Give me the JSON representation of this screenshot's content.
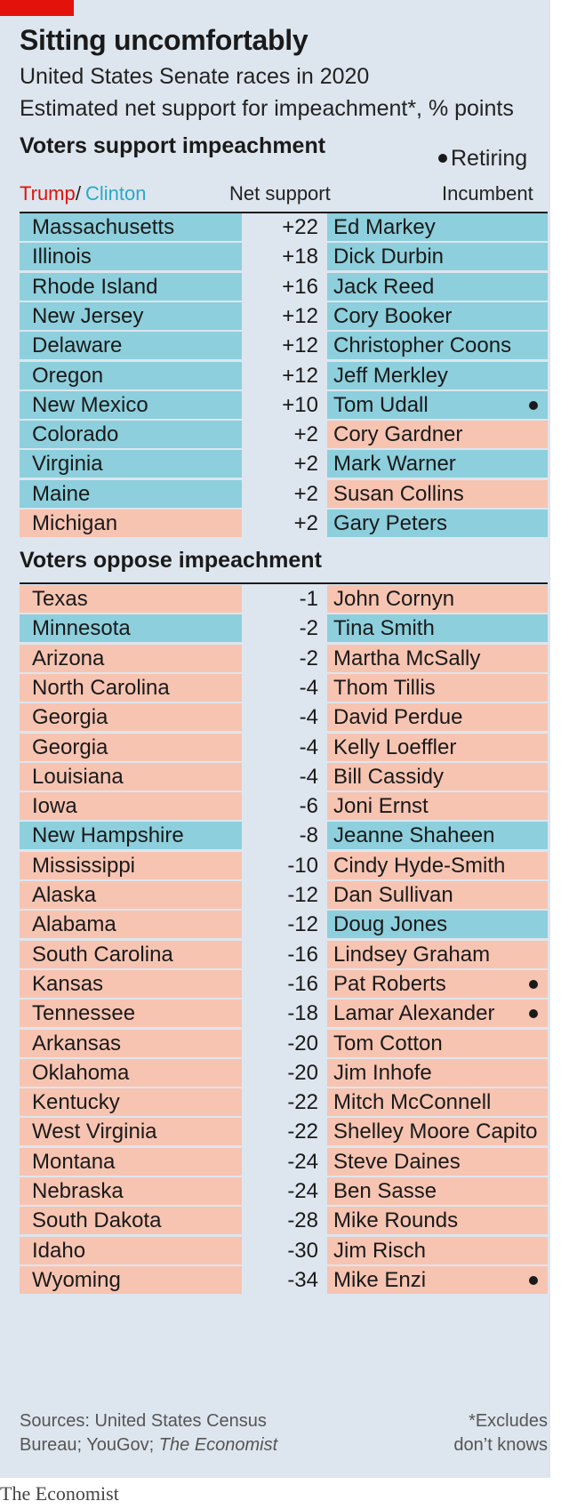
{
  "header": {
    "title": "Sitting uncomfortably",
    "subtitle_line1": "United States Senate races in 2020",
    "subtitle_line2": "Estimated net support for impeachment*, % points"
  },
  "legend": {
    "retiring": "Retiring",
    "trump": "Trump",
    "slash": "/",
    "clinton": "Clinton",
    "net_support": "Net support",
    "incumbent": "Incumbent"
  },
  "colors": {
    "trump": "#f7c4b2",
    "clinton": "#8dcfdc",
    "brand_red": "#e3120b"
  },
  "chart_data": {
    "type": "table",
    "columns": [
      "State (Trump/Clinton)",
      "Net support",
      "Incumbent"
    ],
    "sections": [
      {
        "heading": "Voters support impeachment",
        "rows": [
          {
            "state": "Massachusetts",
            "state_win": "clinton",
            "net": "+22",
            "value": 22,
            "incumbent": "Ed Markey",
            "party": "clinton",
            "retiring": false
          },
          {
            "state": "Illinois",
            "state_win": "clinton",
            "net": "+18",
            "value": 18,
            "incumbent": "Dick Durbin",
            "party": "clinton",
            "retiring": false
          },
          {
            "state": "Rhode Island",
            "state_win": "clinton",
            "net": "+16",
            "value": 16,
            "incumbent": "Jack Reed",
            "party": "clinton",
            "retiring": false
          },
          {
            "state": "New Jersey",
            "state_win": "clinton",
            "net": "+12",
            "value": 12,
            "incumbent": "Cory Booker",
            "party": "clinton",
            "retiring": false
          },
          {
            "state": "Delaware",
            "state_win": "clinton",
            "net": "+12",
            "value": 12,
            "incumbent": "Christopher Coons",
            "party": "clinton",
            "retiring": false
          },
          {
            "state": "Oregon",
            "state_win": "clinton",
            "net": "+12",
            "value": 12,
            "incumbent": "Jeff Merkley",
            "party": "clinton",
            "retiring": false
          },
          {
            "state": "New Mexico",
            "state_win": "clinton",
            "net": "+10",
            "value": 10,
            "incumbent": "Tom Udall",
            "party": "clinton",
            "retiring": true
          },
          {
            "state": "Colorado",
            "state_win": "clinton",
            "net": "+2",
            "value": 2,
            "incumbent": "Cory Gardner",
            "party": "trump",
            "retiring": false
          },
          {
            "state": "Virginia",
            "state_win": "clinton",
            "net": "+2",
            "value": 2,
            "incumbent": "Mark Warner",
            "party": "clinton",
            "retiring": false
          },
          {
            "state": "Maine",
            "state_win": "clinton",
            "net": "+2",
            "value": 2,
            "incumbent": "Susan Collins",
            "party": "trump",
            "retiring": false
          },
          {
            "state": "Michigan",
            "state_win": "trump",
            "net": "+2",
            "value": 2,
            "incumbent": "Gary Peters",
            "party": "clinton",
            "retiring": false
          }
        ]
      },
      {
        "heading": "Voters oppose impeachment",
        "rows": [
          {
            "state": "Texas",
            "state_win": "trump",
            "net": "-1",
            "value": -1,
            "incumbent": "John Cornyn",
            "party": "trump",
            "retiring": false
          },
          {
            "state": "Minnesota",
            "state_win": "clinton",
            "net": "-2",
            "value": -2,
            "incumbent": "Tina Smith",
            "party": "clinton",
            "retiring": false
          },
          {
            "state": "Arizona",
            "state_win": "trump",
            "net": "-2",
            "value": -2,
            "incumbent": "Martha McSally",
            "party": "trump",
            "retiring": false
          },
          {
            "state": "North Carolina",
            "state_win": "trump",
            "net": "-4",
            "value": -4,
            "incumbent": "Thom Tillis",
            "party": "trump",
            "retiring": false
          },
          {
            "state": "Georgia",
            "state_win": "trump",
            "net": "-4",
            "value": -4,
            "incumbent": "David Perdue",
            "party": "trump",
            "retiring": false
          },
          {
            "state": "Georgia",
            "state_win": "trump",
            "net": "-4",
            "value": -4,
            "incumbent": "Kelly Loeffler",
            "party": "trump",
            "retiring": false
          },
          {
            "state": "Louisiana",
            "state_win": "trump",
            "net": "-4",
            "value": -4,
            "incumbent": "Bill Cassidy",
            "party": "trump",
            "retiring": false
          },
          {
            "state": "Iowa",
            "state_win": "trump",
            "net": "-6",
            "value": -6,
            "incumbent": "Joni Ernst",
            "party": "trump",
            "retiring": false
          },
          {
            "state": "New Hampshire",
            "state_win": "clinton",
            "net": "-8",
            "value": -8,
            "incumbent": "Jeanne Shaheen",
            "party": "clinton",
            "retiring": false
          },
          {
            "state": "Mississippi",
            "state_win": "trump",
            "net": "-10",
            "value": -10,
            "incumbent": "Cindy Hyde-Smith",
            "party": "trump",
            "retiring": false
          },
          {
            "state": "Alaska",
            "state_win": "trump",
            "net": "-12",
            "value": -12,
            "incumbent": "Dan Sullivan",
            "party": "trump",
            "retiring": false
          },
          {
            "state": "Alabama",
            "state_win": "trump",
            "net": "-12",
            "value": -12,
            "incumbent": "Doug Jones",
            "party": "clinton",
            "retiring": false
          },
          {
            "state": "South Carolina",
            "state_win": "trump",
            "net": "-16",
            "value": -16,
            "incumbent": "Lindsey Graham",
            "party": "trump",
            "retiring": false
          },
          {
            "state": "Kansas",
            "state_win": "trump",
            "net": "-16",
            "value": -16,
            "incumbent": "Pat Roberts",
            "party": "trump",
            "retiring": true
          },
          {
            "state": "Tennessee",
            "state_win": "trump",
            "net": "-18",
            "value": -18,
            "incumbent": "Lamar Alexander",
            "party": "trump",
            "retiring": true
          },
          {
            "state": "Arkansas",
            "state_win": "trump",
            "net": "-20",
            "value": -20,
            "incumbent": "Tom Cotton",
            "party": "trump",
            "retiring": false
          },
          {
            "state": "Oklahoma",
            "state_win": "trump",
            "net": "-20",
            "value": -20,
            "incumbent": "Jim Inhofe",
            "party": "trump",
            "retiring": false
          },
          {
            "state": "Kentucky",
            "state_win": "trump",
            "net": "-22",
            "value": -22,
            "incumbent": "Mitch McConnell",
            "party": "trump",
            "retiring": false
          },
          {
            "state": "West Virginia",
            "state_win": "trump",
            "net": "-22",
            "value": -22,
            "incumbent": "Shelley Moore Capito",
            "party": "trump",
            "retiring": false
          },
          {
            "state": "Montana",
            "state_win": "trump",
            "net": "-24",
            "value": -24,
            "incumbent": "Steve Daines",
            "party": "trump",
            "retiring": false
          },
          {
            "state": "Nebraska",
            "state_win": "trump",
            "net": "-24",
            "value": -24,
            "incumbent": "Ben Sasse",
            "party": "trump",
            "retiring": false
          },
          {
            "state": "South Dakota",
            "state_win": "trump",
            "net": "-28",
            "value": -28,
            "incumbent": "Mike Rounds",
            "party": "trump",
            "retiring": false
          },
          {
            "state": "Idaho",
            "state_win": "trump",
            "net": "-30",
            "value": -30,
            "incumbent": "Jim Risch",
            "party": "trump",
            "retiring": false
          },
          {
            "state": "Wyoming",
            "state_win": "trump",
            "net": "-34",
            "value": -34,
            "incumbent": "Mike Enzi",
            "party": "trump",
            "retiring": true
          }
        ]
      }
    ]
  },
  "footer": {
    "sources_line1": "Sources: United States Census",
    "sources_line2_prefix": "Bureau; YouGov; ",
    "sources_line2_italic": "The Economist",
    "footnote_line1": "*Excludes",
    "footnote_line2": "don’t knows",
    "brand": "The Economist"
  }
}
